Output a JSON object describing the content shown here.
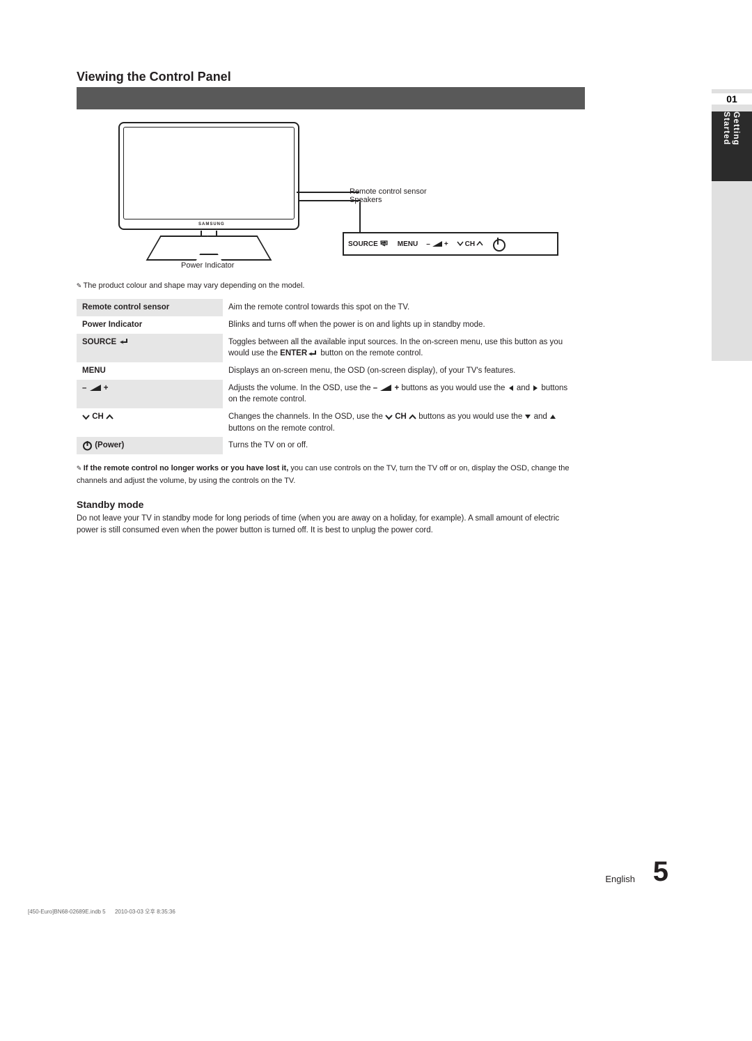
{
  "section_title": "Viewing the Control Panel",
  "sidebar": {
    "num": "01",
    "label": "Getting Started"
  },
  "illustration": {
    "brand": "SAMSUNG",
    "sensor": "Remote control sensor",
    "speaker": "Speakers",
    "indicator": "Power Indicator"
  },
  "button_panel": {
    "source": "SOURCE",
    "menu": "MENU",
    "vol_minus": "–",
    "vol_plus": "+",
    "ch": "CH"
  },
  "product_note_lead": "✎",
  "product_note": "The product colour and shape may vary depending on the model.",
  "rows": [
    {
      "key": "Remote control sensor",
      "desc": "Aim the remote control towards this spot on the TV.",
      "shade": true
    },
    {
      "key": "Power Indicator",
      "desc": "Blinks and turns off when the power is on and lights up in standby mode.",
      "shade": false
    },
    {
      "key": "SOURCE",
      "key_icon": "enter",
      "desc_pre": "Toggles between all the available input sources. In the on-screen menu, use this button as you would use the ",
      "desc_bold": "ENTER",
      "desc_icon": "enter",
      "desc_post": " button on the remote control.",
      "shade": true
    },
    {
      "key": "MENU",
      "desc": "Displays an on-screen menu, the OSD (on-screen display), of your TV's features.",
      "shade": false
    },
    {
      "key_icon": "vol",
      "desc_pre": "Adjusts the volume. In the OSD, use the ",
      "desc_icon": "vol",
      "desc_mid": " buttons as you would use the ",
      "desc_arrows": "lr",
      "desc_post": " buttons on the remote control.",
      "shade": true
    },
    {
      "key_icon": "ch",
      "desc_pre": "Changes the channels. In the OSD, use the ",
      "desc_icon": "ch",
      "desc_mid": " buttons as you would use the ",
      "desc_arrows": "ud",
      "desc_post": " buttons on the remote control.",
      "shade": false
    },
    {
      "key_icon": "power",
      "key_suffix": " (Power)",
      "desc": "Turns the TV on or off.",
      "shade": true
    }
  ],
  "footnote": {
    "lead": "✎",
    "title": "If the remote control no longer works or you have lost it,",
    "body": " you can use controls on the TV, turn the TV off or on, display the OSD, change the channels and adjust the volume, by using the controls on the TV."
  },
  "standby": {
    "head": "Standby mode",
    "body": "Do not leave your TV in standby mode for long periods of time (when you are away on a holiday, for example). A small amount of electric power is still consumed even when the power button is turned off. It is best to unplug the power cord."
  },
  "page_label": "English",
  "page_number": "5",
  "corner_text": "[450-Euro]BN68-02689E.indb   5",
  "corner_date": "2010-03-03   오후 8:35:36",
  "colors": {
    "title_bar": "#595959",
    "shade": "#e6e6e6",
    "sidebar_bg": "#e0e0e0",
    "sidebar_tab": "#2b2b2b",
    "text": "#231f20"
  }
}
